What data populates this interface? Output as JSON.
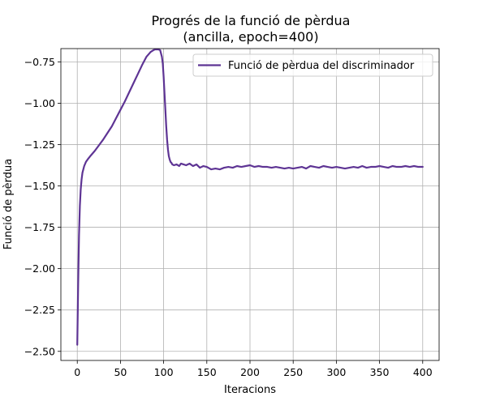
{
  "chart_data": {
    "type": "line",
    "title": [
      "Progrés de la funció de pèrdua",
      "(ancilla, epoch=400)"
    ],
    "xlabel": "Iteracions",
    "ylabel": "Funció de pèrdua",
    "xlim": [
      -19,
      419
    ],
    "ylim": [
      -2.555,
      -0.67
    ],
    "xticks": [
      0,
      50,
      100,
      150,
      200,
      250,
      300,
      350,
      400
    ],
    "yticks": [
      -2.5,
      -2.25,
      -2.0,
      -1.75,
      -1.5,
      -1.25,
      -1.0,
      -0.75
    ],
    "ytick_labels": [
      "−2.50",
      "−2.25",
      "−2.00",
      "−1.75",
      "−1.50",
      "−1.25",
      "−1.00",
      "−0.75"
    ],
    "grid": true,
    "legend_position": "top-right",
    "series": [
      {
        "name": "Funció de pèrdua del discriminador",
        "color": "#5e3494",
        "x": [
          0,
          1,
          2,
          3,
          4,
          5,
          6,
          8,
          10,
          12,
          15,
          20,
          25,
          30,
          35,
          40,
          45,
          50,
          55,
          60,
          65,
          70,
          75,
          80,
          85,
          88,
          90,
          92,
          94,
          96,
          98,
          99,
          100,
          101,
          102,
          103,
          104,
          105,
          106,
          107,
          108,
          109,
          110,
          112,
          115,
          118,
          120,
          123,
          126,
          130,
          134,
          138,
          142,
          146,
          150,
          155,
          160,
          165,
          170,
          175,
          180,
          185,
          190,
          195,
          200,
          205,
          210,
          215,
          220,
          225,
          230,
          235,
          240,
          245,
          250,
          255,
          260,
          265,
          270,
          275,
          280,
          285,
          290,
          295,
          300,
          305,
          310,
          315,
          320,
          325,
          330,
          335,
          340,
          345,
          350,
          355,
          360,
          365,
          370,
          375,
          380,
          385,
          390,
          395,
          400
        ],
        "y": [
          -2.46,
          -2.1,
          -1.8,
          -1.62,
          -1.52,
          -1.46,
          -1.42,
          -1.38,
          -1.355,
          -1.34,
          -1.32,
          -1.29,
          -1.255,
          -1.22,
          -1.18,
          -1.14,
          -1.09,
          -1.04,
          -0.99,
          -0.935,
          -0.88,
          -0.825,
          -0.77,
          -0.72,
          -0.69,
          -0.68,
          -0.675,
          -0.675,
          -0.675,
          -0.68,
          -0.72,
          -0.76,
          -0.84,
          -0.94,
          -1.04,
          -1.14,
          -1.22,
          -1.28,
          -1.32,
          -1.34,
          -1.355,
          -1.36,
          -1.37,
          -1.375,
          -1.37,
          -1.38,
          -1.365,
          -1.37,
          -1.375,
          -1.365,
          -1.38,
          -1.37,
          -1.39,
          -1.38,
          -1.385,
          -1.4,
          -1.395,
          -1.4,
          -1.39,
          -1.385,
          -1.39,
          -1.38,
          -1.385,
          -1.38,
          -1.375,
          -1.385,
          -1.38,
          -1.385,
          -1.385,
          -1.39,
          -1.385,
          -1.39,
          -1.395,
          -1.39,
          -1.395,
          -1.39,
          -1.385,
          -1.395,
          -1.38,
          -1.385,
          -1.39,
          -1.38,
          -1.385,
          -1.39,
          -1.385,
          -1.39,
          -1.395,
          -1.39,
          -1.385,
          -1.39,
          -1.38,
          -1.39,
          -1.385,
          -1.385,
          -1.38,
          -1.385,
          -1.39,
          -1.38,
          -1.385,
          -1.385,
          -1.38,
          -1.385,
          -1.38,
          -1.385,
          -1.385
        ]
      }
    ]
  }
}
